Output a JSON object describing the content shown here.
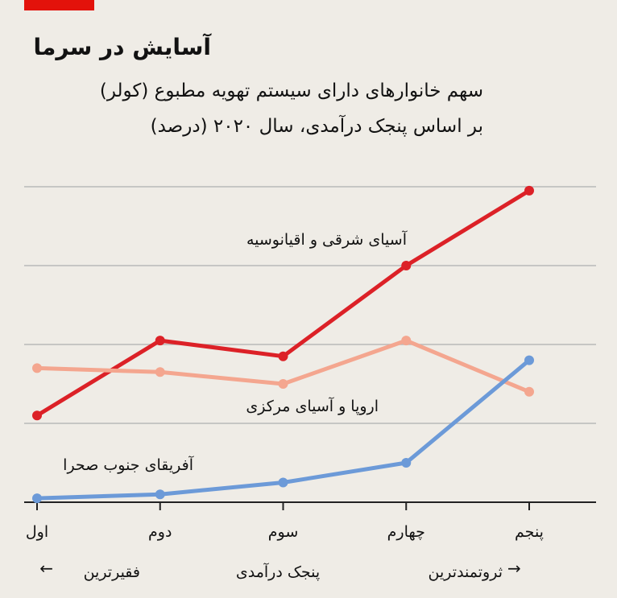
{
  "chart_data": {
    "type": "line",
    "title": "آسایش در سرما",
    "subtitle": [
      "سهم خانوارهای دارای سیستم تهویه مطبوع (کولر)",
      "بر اساس پنجک درآمدی، سال ۲۰۲۰ (درصد)"
    ],
    "categories": [
      "اول",
      "دوم",
      "سوم",
      "چهارم",
      "پنجم"
    ],
    "series": [
      {
        "name": "آسیای شرقی و اقیانوسیه",
        "color": "#dc2127",
        "values": [
          22,
          41,
          37,
          60,
          79
        ]
      },
      {
        "name": "اروپا و آسیای مرکزی",
        "color": "#f4a68f",
        "values": [
          34,
          33,
          30,
          41,
          28
        ]
      },
      {
        "name": "آفریقای جنوب صحرا",
        "color": "#6c9ad8",
        "values": [
          1,
          2,
          5,
          10,
          36
        ]
      }
    ],
    "xlabel": "پنجک درآمدی",
    "poorest_label": "فقیرترین",
    "richest_label": "ثروتمندترین",
    "ylim": [
      0,
      80
    ],
    "yticks": [
      0,
      20,
      40,
      60,
      80
    ],
    "grid": true
  }
}
